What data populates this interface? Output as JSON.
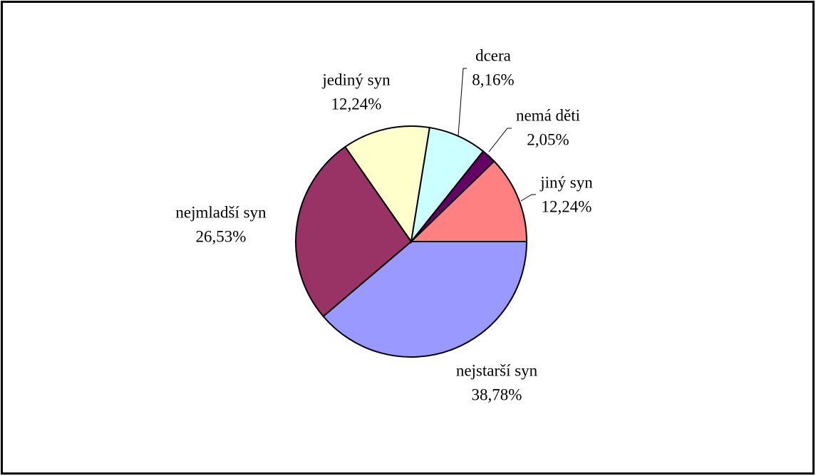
{
  "chart_data": {
    "type": "pie",
    "categories": [
      "nejstarší syn",
      "nejmladší syn",
      "jediný syn",
      "dcera",
      "nemá děti",
      "jiný syn"
    ],
    "values": [
      38.78,
      26.53,
      12.24,
      8.16,
      2.05,
      12.24
    ],
    "value_labels": [
      "38,78%",
      "26,53%",
      "12,24%",
      "8,16%",
      "2,05%",
      "12,24%"
    ],
    "colors": [
      "#9999ff",
      "#993366",
      "#ffffcc",
      "#ccffff",
      "#660066",
      "#ff8080"
    ]
  }
}
